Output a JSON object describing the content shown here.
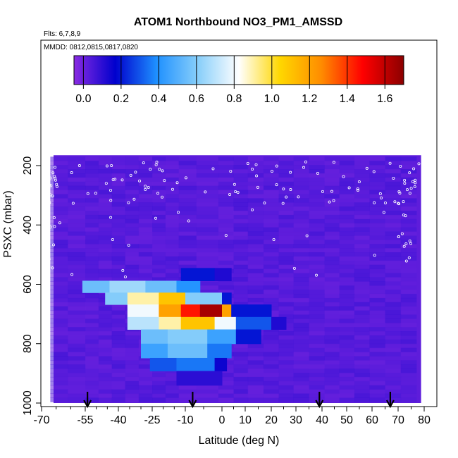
{
  "header": {
    "title": "ATOM1 Northbound NO3_PM1_AMSSD",
    "flights_note": "Flts: 6,7,8,9",
    "dates_note": "MMDD: 0812,0815,0817,0820"
  },
  "chart_data": {
    "type": "heatmap",
    "title": "ATOM1 Northbound NO3_PM1_AMSSD",
    "xlabel": "Latitude (deg N)",
    "ylabel": "PSXC (mbar)",
    "xlim": [
      -70,
      80
    ],
    "ylim": [
      1000,
      100
    ],
    "x_ticks": [
      -70,
      -55,
      -40,
      -25,
      -10,
      0,
      10,
      20,
      30,
      40,
      50,
      60,
      70,
      80
    ],
    "x_tick_labels": [
      "-70",
      "-55",
      "-40",
      "-25",
      "-10",
      "0",
      "10",
      "20",
      "30",
      "40",
      "50",
      "60",
      "70",
      "80"
    ],
    "y_ticks": [
      200,
      400,
      600,
      800,
      1000
    ],
    "y_tick_labels": [
      "200",
      "400",
      "600",
      "800",
      "1000"
    ],
    "colorbar": {
      "min": -0.05,
      "max": 1.7,
      "ticks": [
        0.0,
        0.2,
        0.4,
        0.6,
        0.8,
        1.0,
        1.2,
        1.4,
        1.6
      ],
      "tick_labels": [
        "0.0",
        "0.2",
        "0.4",
        "0.6",
        "0.8",
        "1.0",
        "1.2",
        "1.4",
        "1.6"
      ],
      "colors": [
        "#8a2be2",
        "#0000cd",
        "#1e90ff",
        "#87cefa",
        "#ffffff",
        "#ffd700",
        "#ff8c00",
        "#ff0000",
        "#8b0000"
      ]
    },
    "background_value": 0.02,
    "cells": [
      {
        "lat": [
          -56,
          -44
        ],
        "p": [
          588,
          628
        ],
        "value": 0.55
      },
      {
        "lat": [
          -44,
          -28
        ],
        "p": [
          588,
          628
        ],
        "value": 0.65
      },
      {
        "lat": [
          -28,
          -14
        ],
        "p": [
          588,
          628
        ],
        "value": 0.55
      },
      {
        "lat": [
          -14,
          -6
        ],
        "p": [
          588,
          628
        ],
        "value": 0.4
      },
      {
        "lat": [
          -46,
          -36
        ],
        "p": [
          628,
          668
        ],
        "value": 0.6
      },
      {
        "lat": [
          -36,
          -22
        ],
        "p": [
          628,
          668
        ],
        "value": 0.9
      },
      {
        "lat": [
          -22,
          -10
        ],
        "p": [
          628,
          668
        ],
        "value": 1.1
      },
      {
        "lat": [
          -10,
          0
        ],
        "p": [
          628,
          668
        ],
        "value": 0.6
      },
      {
        "lat": [
          0,
          4
        ],
        "p": [
          628,
          668
        ],
        "value": 0.2
      },
      {
        "lat": [
          -36,
          -22
        ],
        "p": [
          668,
          710
        ],
        "value": 0.8
      },
      {
        "lat": [
          -22,
          -12
        ],
        "p": [
          668,
          710
        ],
        "value": 1.2
      },
      {
        "lat": [
          -12,
          -6
        ],
        "p": [
          668,
          710
        ],
        "value": 1.45
      },
      {
        "lat": [
          -6,
          0
        ],
        "p": [
          668,
          710
        ],
        "value": 1.65
      },
      {
        "lat": [
          0,
          4
        ],
        "p": [
          668,
          710
        ],
        "value": 1.2
      },
      {
        "lat": [
          4,
          20
        ],
        "p": [
          668,
          710
        ],
        "value": 0.2
      },
      {
        "lat": [
          -36,
          -22
        ],
        "p": [
          710,
          752
        ],
        "value": 0.7
      },
      {
        "lat": [
          -22,
          -12
        ],
        "p": [
          710,
          752
        ],
        "value": 0.9
      },
      {
        "lat": [
          -12,
          -2
        ],
        "p": [
          710,
          752
        ],
        "value": 1.1
      },
      {
        "lat": [
          -2,
          6
        ],
        "p": [
          710,
          752
        ],
        "value": 0.8
      },
      {
        "lat": [
          6,
          20
        ],
        "p": [
          710,
          752
        ],
        "value": 0.3
      },
      {
        "lat": [
          20,
          26
        ],
        "p": [
          710,
          752
        ],
        "value": 0.12
      },
      {
        "lat": [
          -30,
          -18
        ],
        "p": [
          752,
          800
        ],
        "value": 0.55
      },
      {
        "lat": [
          -18,
          -4
        ],
        "p": [
          752,
          800
        ],
        "value": 0.6
      },
      {
        "lat": [
          -4,
          6
        ],
        "p": [
          752,
          800
        ],
        "value": 0.45
      },
      {
        "lat": [
          6,
          16
        ],
        "p": [
          752,
          800
        ],
        "value": 0.2
      },
      {
        "lat": [
          -30,
          -18
        ],
        "p": [
          800,
          848
        ],
        "value": 0.45
      },
      {
        "lat": [
          -18,
          -4
        ],
        "p": [
          800,
          848
        ],
        "value": 0.55
      },
      {
        "lat": [
          -4,
          4
        ],
        "p": [
          800,
          848
        ],
        "value": 0.35
      },
      {
        "lat": [
          -26,
          -14
        ],
        "p": [
          848,
          892
        ],
        "value": 0.3
      },
      {
        "lat": [
          -14,
          -2
        ],
        "p": [
          848,
          892
        ],
        "value": 0.35
      },
      {
        "lat": [
          -2,
          2
        ],
        "p": [
          848,
          892
        ],
        "value": 0.15
      },
      {
        "lat": [
          -14,
          0
        ],
        "p": [
          892,
          940
        ],
        "value": 0.1
      },
      {
        "lat": [
          -12,
          -2
        ],
        "p": [
          545,
          588
        ],
        "value": 0.2
      },
      {
        "lat": [
          -2,
          4
        ],
        "p": [
          545,
          588
        ],
        "value": 0.12
      }
    ],
    "arrows_lat": [
      -54,
      -8,
      39,
      67
    ]
  }
}
